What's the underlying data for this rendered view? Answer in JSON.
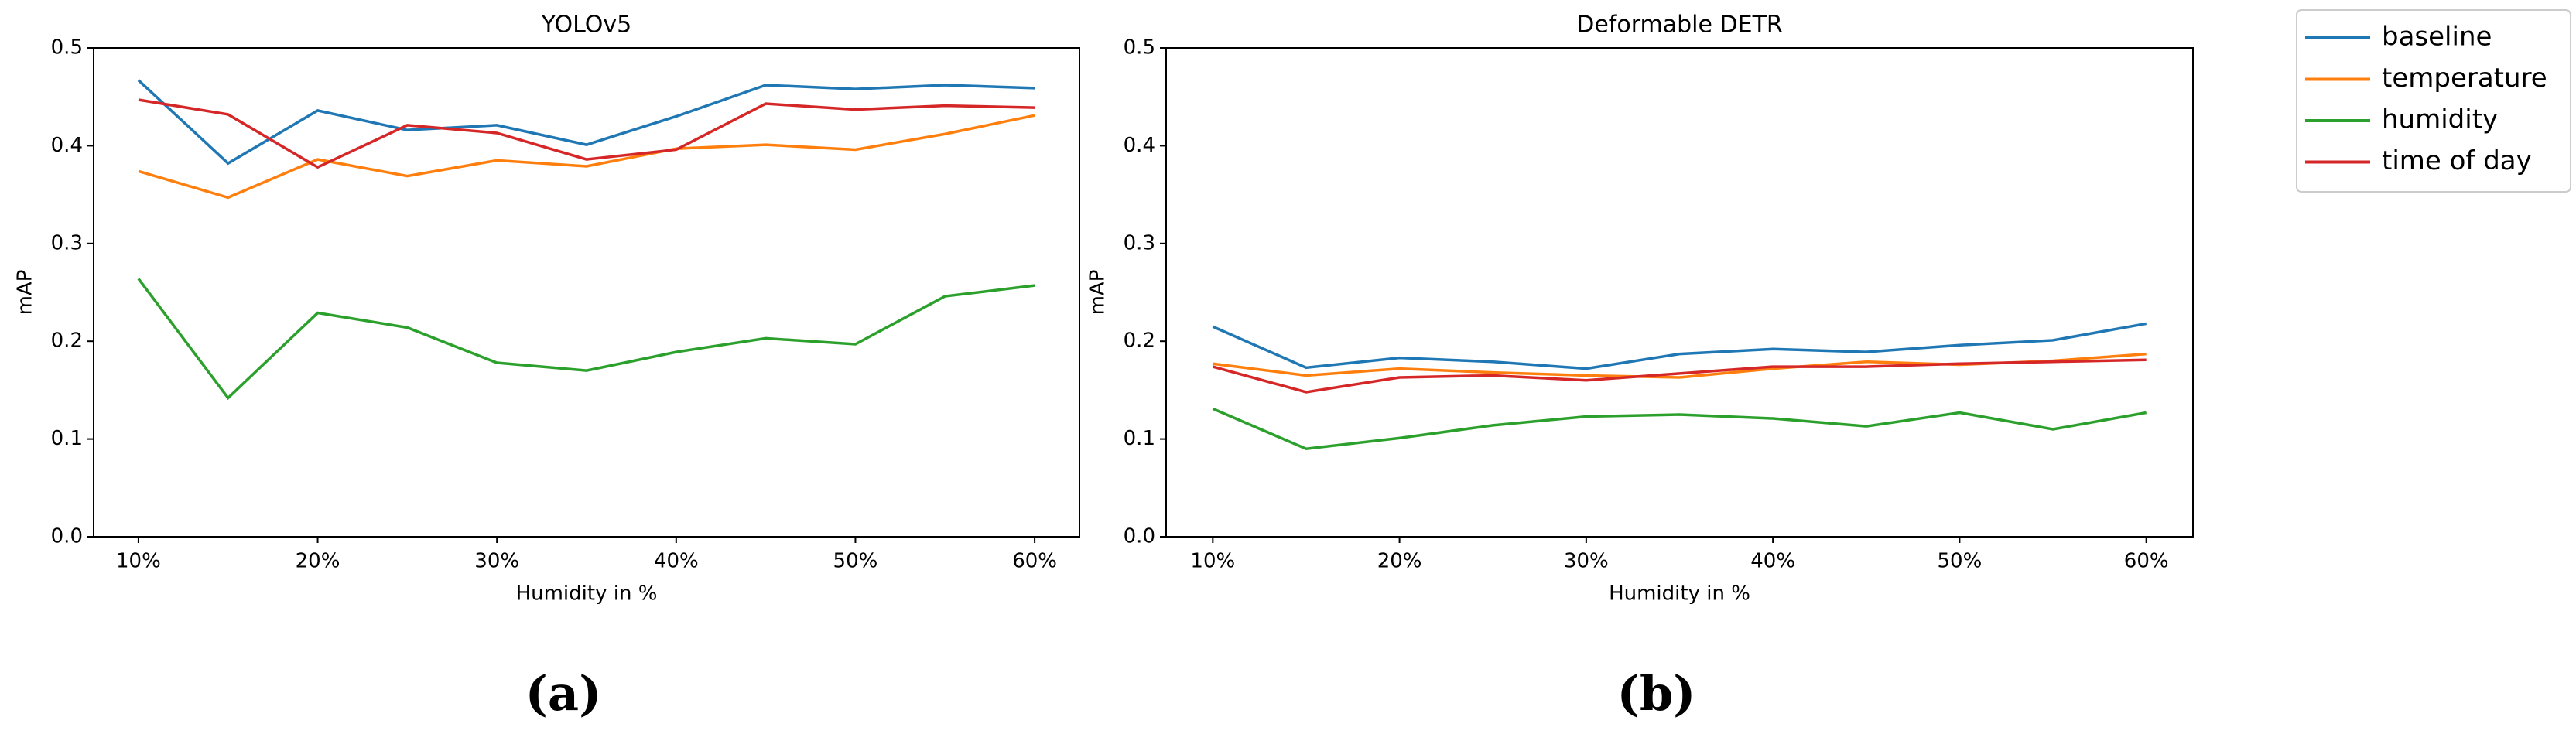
{
  "chart_data": [
    {
      "type": "line",
      "title": "YOLOv5",
      "caption": "(a)",
      "x_label": "Humidity in %",
      "y_label": "mAP",
      "x": [
        10,
        15,
        20,
        25,
        30,
        35,
        40,
        45,
        50,
        55,
        60
      ],
      "xlim": [
        7.5,
        62.5
      ],
      "xticks": [
        {
          "value": 10,
          "label": "10%"
        },
        {
          "value": 20,
          "label": "20%"
        },
        {
          "value": 30,
          "label": "30%"
        },
        {
          "value": 40,
          "label": "40%"
        },
        {
          "value": 50,
          "label": "50%"
        },
        {
          "value": 60,
          "label": "60%"
        }
      ],
      "ylim": [
        0,
        0.5
      ],
      "yticks": [
        {
          "value": 0,
          "label": "0.0"
        },
        0.1,
        0.2,
        0.3,
        0.4,
        0.5
      ],
      "series": [
        {
          "name": "baseline",
          "color": "#1f77b4",
          "values": [
            0.467,
            0.382,
            0.436,
            0.416,
            0.421,
            0.401,
            0.43,
            0.462,
            0.458,
            0.462,
            0.459
          ]
        },
        {
          "name": "temperature",
          "color": "#ff7f0e",
          "values": [
            0.374,
            0.347,
            0.386,
            0.369,
            0.385,
            0.379,
            0.397,
            0.401,
            0.396,
            0.412,
            0.431
          ]
        },
        {
          "name": "humidity",
          "color": "#2ca02c",
          "values": [
            0.264,
            0.142,
            0.229,
            0.214,
            0.178,
            0.17,
            0.189,
            0.203,
            0.197,
            0.246,
            0.257
          ]
        },
        {
          "name": "time of day",
          "color": "#d62728",
          "values": [
            0.447,
            0.432,
            0.378,
            0.421,
            0.413,
            0.386,
            0.396,
            0.443,
            0.437,
            0.441,
            0.439
          ]
        }
      ]
    },
    {
      "type": "line",
      "title": "Deformable DETR",
      "caption": "(b)",
      "x_label": "Humidity in %",
      "y_label": "mAP",
      "x": [
        10,
        15,
        20,
        25,
        30,
        35,
        40,
        45,
        50,
        55,
        60
      ],
      "xlim": [
        7.5,
        62.5
      ],
      "xticks": [
        {
          "value": 10,
          "label": "10%"
        },
        {
          "value": 20,
          "label": "20%"
        },
        {
          "value": 30,
          "label": "30%"
        },
        {
          "value": 40,
          "label": "40%"
        },
        {
          "value": 50,
          "label": "50%"
        },
        {
          "value": 60,
          "label": "60%"
        }
      ],
      "ylim": [
        0,
        0.5
      ],
      "yticks": [
        {
          "value": 0,
          "label": "0.0"
        },
        0.1,
        0.2,
        0.3,
        0.4,
        0.5
      ],
      "series": [
        {
          "name": "baseline",
          "color": "#1f77b4",
          "values": [
            0.215,
            0.173,
            0.183,
            0.179,
            0.172,
            0.187,
            0.192,
            0.189,
            0.196,
            0.201,
            0.218
          ]
        },
        {
          "name": "temperature",
          "color": "#ff7f0e",
          "values": [
            0.177,
            0.165,
            0.172,
            0.168,
            0.165,
            0.163,
            0.172,
            0.179,
            0.176,
            0.18,
            0.187
          ]
        },
        {
          "name": "humidity",
          "color": "#2ca02c",
          "values": [
            0.131,
            0.09,
            0.101,
            0.114,
            0.123,
            0.125,
            0.121,
            0.113,
            0.127,
            0.11,
            0.127
          ]
        },
        {
          "name": "time of day",
          "color": "#d62728",
          "values": [
            0.174,
            0.148,
            0.163,
            0.165,
            0.16,
            0.167,
            0.174,
            0.174,
            0.177,
            0.179,
            0.181
          ]
        }
      ]
    }
  ]
}
